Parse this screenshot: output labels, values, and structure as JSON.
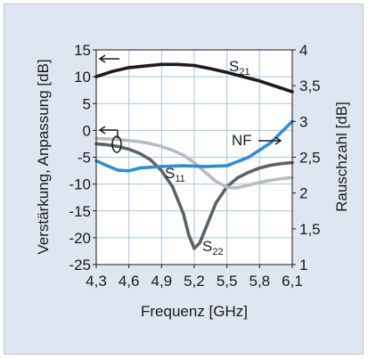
{
  "chart_data": {
    "type": "line",
    "xlabel": "Frequenz [GHz]",
    "ylabel_left": "Verstärkung, Anpassung [dB]",
    "ylabel_right": "Rauschzahl [dB]",
    "x_ticks": [
      "4,3",
      "4,6",
      "4,9",
      "5,2",
      "5,5",
      "5,8",
      "6,1"
    ],
    "y_left_ticks": [
      "15",
      "10",
      "5",
      "0",
      "-5",
      "-10",
      "-15",
      "-20",
      "-25"
    ],
    "y_right_ticks": [
      "4",
      "3,5",
      "3",
      "2,5",
      "2",
      "1,5",
      "1"
    ],
    "xlim": [
      4.3,
      6.1
    ],
    "ylim_left": [
      -25,
      15
    ],
    "ylim_right": [
      1,
      4
    ],
    "grid": true,
    "series": [
      {
        "name": "S21",
        "axis": "left",
        "color": "#1c1c1c",
        "x": [
          4.3,
          4.45,
          4.6,
          4.75,
          4.9,
          5.05,
          5.2,
          5.35,
          5.5,
          5.65,
          5.8,
          5.95,
          6.1
        ],
        "y": [
          10,
          11,
          11.7,
          12.0,
          12.3,
          12.3,
          12.1,
          11.5,
          10.8,
          10.0,
          9.2,
          8.2,
          7.2
        ]
      },
      {
        "name": "NF",
        "axis": "right",
        "color": "#2e8fd0",
        "x": [
          4.3,
          4.4,
          4.5,
          4.6,
          4.7,
          4.9,
          5.1,
          5.3,
          5.5,
          5.7,
          5.9,
          6.0,
          6.1
        ],
        "y": [
          2.45,
          2.38,
          2.32,
          2.31,
          2.35,
          2.37,
          2.38,
          2.37,
          2.38,
          2.5,
          2.7,
          2.85,
          3.0
        ]
      },
      {
        "name": "S11",
        "axis": "left",
        "color": "#b8bcc2",
        "x": [
          4.3,
          4.4,
          4.5,
          4.6,
          4.7,
          4.8,
          4.9,
          5.0,
          5.1,
          5.2,
          5.3,
          5.4,
          5.5,
          5.6,
          5.7,
          5.8,
          5.9,
          6.0,
          6.1
        ],
        "y": [
          -1.5,
          -1.6,
          -1.7,
          -1.9,
          -2.1,
          -2.5,
          -3.0,
          -3.7,
          -4.6,
          -6.0,
          -7.8,
          -9.5,
          -10.6,
          -10.7,
          -10.2,
          -9.7,
          -9.3,
          -9.0,
          -8.8
        ]
      },
      {
        "name": "S22",
        "axis": "left",
        "color": "#5e6266",
        "x": [
          4.3,
          4.4,
          4.5,
          4.6,
          4.7,
          4.8,
          4.9,
          5.0,
          5.1,
          5.15,
          5.2,
          5.25,
          5.3,
          5.4,
          5.5,
          5.6,
          5.7,
          5.8,
          5.9,
          6.0,
          6.1
        ],
        "y": [
          -2.5,
          -2.7,
          -3.0,
          -3.5,
          -4.3,
          -5.5,
          -7.5,
          -10.5,
          -15.5,
          -19.5,
          -22.0,
          -21.0,
          -18.5,
          -13.5,
          -10.5,
          -8.8,
          -7.8,
          -7.0,
          -6.5,
          -6.2,
          -6.0
        ]
      }
    ],
    "annotations": {
      "S21": {
        "main": "S",
        "sub": "21"
      },
      "NF": {
        "main": "NF"
      },
      "S11": {
        "main": "S",
        "sub": "11"
      },
      "S22": {
        "main": "S",
        "sub": "22"
      }
    }
  }
}
